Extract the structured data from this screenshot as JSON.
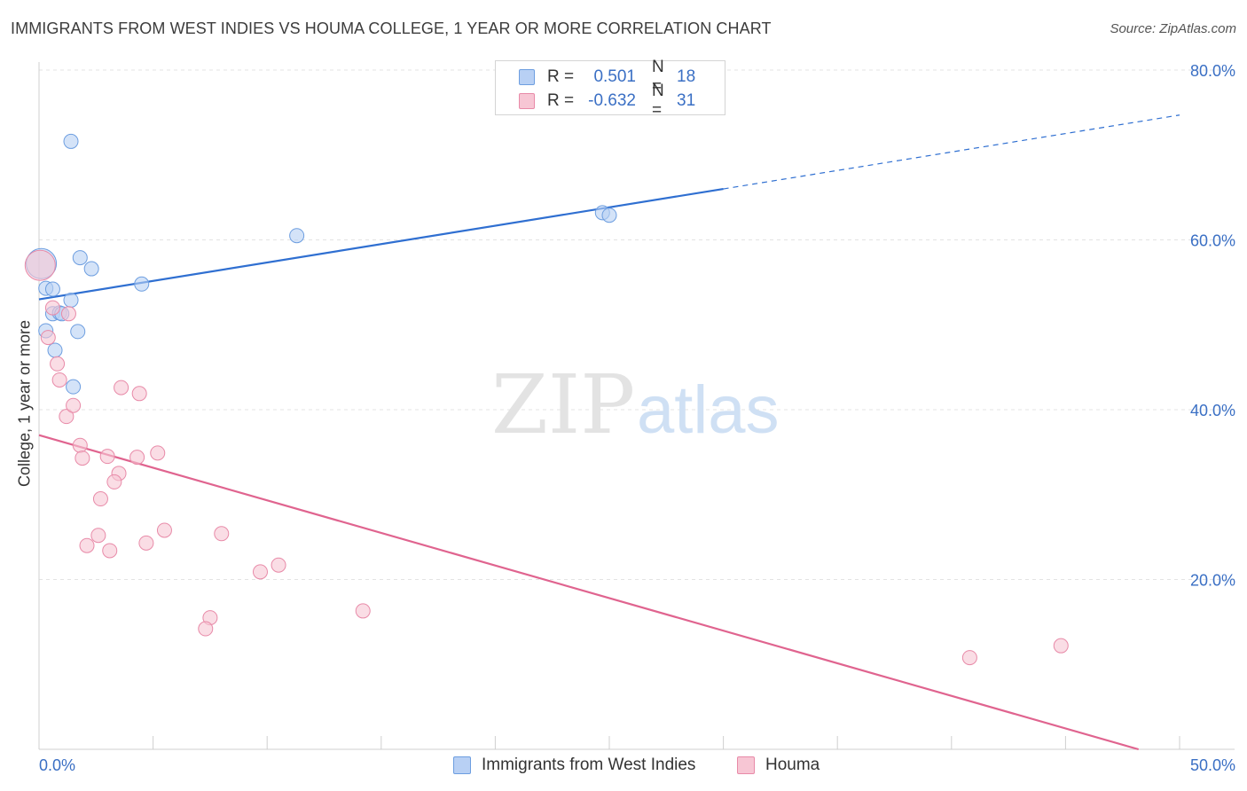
{
  "header": {
    "title": "IMMIGRANTS FROM WEST INDIES VS HOUMA COLLEGE, 1 YEAR OR MORE CORRELATION CHART",
    "source": "Source: ZipAtlas.com"
  },
  "watermark": {
    "zip": "ZIP",
    "atlas": "atlas"
  },
  "legend": {
    "rows": [
      {
        "r_label": "R =",
        "r_value": "0.501",
        "n_label": "N =",
        "n_value": "18"
      },
      {
        "r_label": "R =",
        "r_value": "-0.632",
        "n_label": "N =",
        "n_value": "31"
      }
    ]
  },
  "colors": {
    "blue_fill": "#b8d0f4",
    "blue_stroke": "#6d9ee0",
    "blue_line": "#2f6fd1",
    "pink_fill": "#f7c6d4",
    "pink_stroke": "#e88aa8",
    "pink_line": "#e0648f",
    "tick_text": "#3a6fc4",
    "grid": "#e3e3e3"
  },
  "chart_data": {
    "type": "scatter",
    "title": "IMMIGRANTS FROM WEST INDIES VS HOUMA COLLEGE, 1 YEAR OR MORE CORRELATION CHART",
    "xlabel": "",
    "ylabel": "College, 1 year or more",
    "xlim": [
      0,
      50
    ],
    "ylim": [
      0,
      80
    ],
    "x_tick_labels": [
      "0.0%",
      "50.0%"
    ],
    "y_ticks": [
      20,
      40,
      60,
      80
    ],
    "y_tick_labels": [
      "20.0%",
      "40.0%",
      "60.0%",
      "80.0%"
    ],
    "grid": true,
    "legend_position": "top-center",
    "series": [
      {
        "name": "Immigrants from West Indies",
        "color": "blue",
        "points": [
          {
            "x": 0.1,
            "y": 57.2,
            "size": "large"
          },
          {
            "x": 0.3,
            "y": 54.3
          },
          {
            "x": 0.6,
            "y": 54.2
          },
          {
            "x": 0.3,
            "y": 49.3
          },
          {
            "x": 0.6,
            "y": 51.3
          },
          {
            "x": 0.9,
            "y": 51.4
          },
          {
            "x": 1.0,
            "y": 51.3
          },
          {
            "x": 0.7,
            "y": 47.0
          },
          {
            "x": 1.4,
            "y": 52.9
          },
          {
            "x": 1.7,
            "y": 49.2
          },
          {
            "x": 1.5,
            "y": 42.7
          },
          {
            "x": 1.4,
            "y": 71.6
          },
          {
            "x": 1.8,
            "y": 57.9
          },
          {
            "x": 2.3,
            "y": 56.6
          },
          {
            "x": 4.5,
            "y": 54.8
          },
          {
            "x": 11.3,
            "y": 60.5
          },
          {
            "x": 24.7,
            "y": 63.2
          },
          {
            "x": 25.0,
            "y": 62.9
          }
        ],
        "trend": {
          "x0": 0,
          "y0": 53.0,
          "x1": 30.0,
          "y1": 66.0,
          "dash_to_x": 50,
          "dash_to_y": 74.7
        }
      },
      {
        "name": "Houma",
        "color": "pink",
        "points": [
          {
            "x": 0.05,
            "y": 57.0,
            "size": "large"
          },
          {
            "x": 0.4,
            "y": 48.5
          },
          {
            "x": 0.6,
            "y": 52.0
          },
          {
            "x": 1.3,
            "y": 51.3
          },
          {
            "x": 0.8,
            "y": 45.4
          },
          {
            "x": 0.9,
            "y": 43.5
          },
          {
            "x": 1.2,
            "y": 39.2
          },
          {
            "x": 1.5,
            "y": 40.5
          },
          {
            "x": 1.8,
            "y": 35.8
          },
          {
            "x": 1.9,
            "y": 34.3
          },
          {
            "x": 3.0,
            "y": 34.5
          },
          {
            "x": 3.5,
            "y": 32.5
          },
          {
            "x": 3.3,
            "y": 31.5
          },
          {
            "x": 2.7,
            "y": 29.5
          },
          {
            "x": 3.6,
            "y": 42.6
          },
          {
            "x": 4.4,
            "y": 41.9
          },
          {
            "x": 4.3,
            "y": 34.4
          },
          {
            "x": 5.2,
            "y": 34.9
          },
          {
            "x": 2.6,
            "y": 25.2
          },
          {
            "x": 2.1,
            "y": 24.0
          },
          {
            "x": 3.1,
            "y": 23.4
          },
          {
            "x": 4.7,
            "y": 24.3
          },
          {
            "x": 5.5,
            "y": 25.8
          },
          {
            "x": 8.0,
            "y": 25.4
          },
          {
            "x": 10.5,
            "y": 21.7
          },
          {
            "x": 9.7,
            "y": 20.9
          },
          {
            "x": 7.5,
            "y": 15.5
          },
          {
            "x": 7.3,
            "y": 14.2
          },
          {
            "x": 14.2,
            "y": 16.3
          },
          {
            "x": 40.8,
            "y": 10.8
          },
          {
            "x": 44.8,
            "y": 12.2
          }
        ],
        "trend": {
          "x0": 0,
          "y0": 37.0,
          "x1": 48.2,
          "y1": 0
        }
      }
    ]
  },
  "bottom_legend": {
    "items": [
      "Immigrants from West Indies",
      "Houma"
    ]
  }
}
